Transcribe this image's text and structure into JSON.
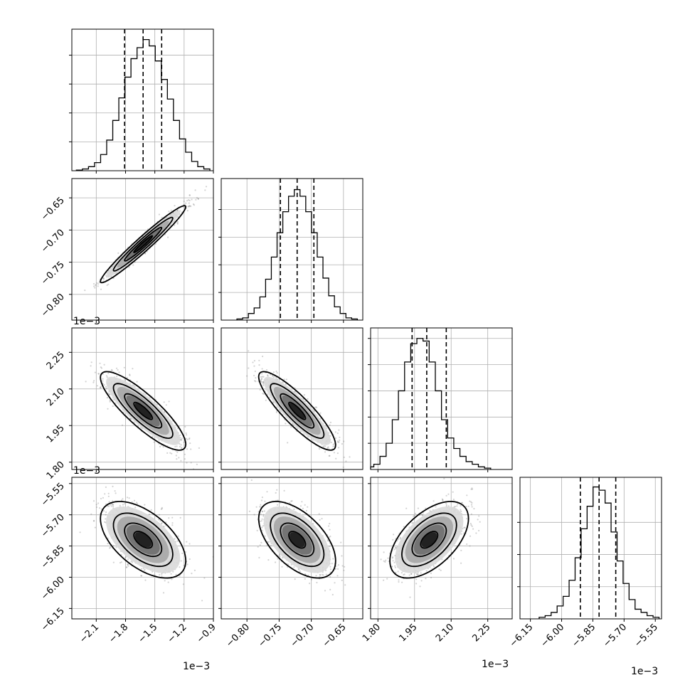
{
  "chart_data": {
    "type": "corner",
    "parameters": [
      {
        "range": [
          -2.35,
          -0.9
        ],
        "ticks": [
          -2.1,
          -1.8,
          -1.5,
          -1.2,
          -0.9
        ],
        "tick_labels": [
          "−2.1",
          "−1.8",
          "−1.5",
          "−1.2",
          "−0.9"
        ],
        "offset": "1e−3",
        "mean": -1.62,
        "sd": 0.19,
        "quantiles": [
          -1.81,
          -1.62,
          -1.43
        ],
        "hist_ylim": [
          0,
          0.00245
        ],
        "hist_yticks": [
          0.0005,
          0.001,
          0.0015,
          0.002
        ],
        "hist_values": [
          1e-05,
          3e-05,
          7e-05,
          0.00014,
          0.00028,
          0.00053,
          0.00087,
          0.00126,
          0.00162,
          0.00194,
          0.00213,
          0.00227,
          0.00216,
          0.0019,
          0.00158,
          0.00124,
          0.00087,
          0.00055,
          0.00032,
          0.00016,
          7e-05,
          3e-05
        ]
      },
      {
        "range": [
          -0.84,
          -0.62
        ],
        "ticks": [
          -0.8,
          -0.75,
          -0.7,
          -0.65
        ],
        "tick_labels": [
          "−0.80",
          "−0.75",
          "−0.70",
          "−0.65"
        ],
        "offset": "1e−3",
        "mean": -0.722,
        "sd": 0.026,
        "quantiles": [
          -0.748,
          -0.722,
          -0.696
        ],
        "hist_ylim": [
          0,
          0.0128
        ],
        "hist_yticks": [
          0.0025,
          0.005,
          0.0075,
          0.01
        ],
        "hist_values": [
          0.0001,
          0.0002,
          0.0006,
          0.0011,
          0.0021,
          0.0037,
          0.0057,
          0.0079,
          0.0098,
          0.0112,
          0.0118,
          0.0112,
          0.0098,
          0.0079,
          0.0057,
          0.0038,
          0.0022,
          0.0012,
          0.0006,
          0.0002,
          0.0001
        ]
      },
      {
        "range": [
          1.77,
          2.35
        ],
        "ticks": [
          1.8,
          1.95,
          2.1,
          2.25
        ],
        "tick_labels": [
          "1.80",
          "1.95",
          "2.10",
          "2.25"
        ],
        "offset": "1e−3",
        "mean": 2.01,
        "sd": 0.07,
        "quantiles": [
          1.94,
          2.0,
          2.08
        ],
        "hist_ylim": [
          0,
          0.0054
        ],
        "hist_yticks": [
          0.001,
          0.002,
          0.003,
          0.004,
          0.005
        ],
        "hist_values": [
          0.0001,
          0.0002,
          0.0005,
          0.001,
          0.0019,
          0.003,
          0.0041,
          0.0048,
          0.005,
          0.0049,
          0.0041,
          0.003,
          0.0019,
          0.0012,
          0.0008,
          0.0005,
          0.0003,
          0.0002,
          0.0001,
          5e-05
        ]
      },
      {
        "range": [
          -6.2,
          -5.52
        ],
        "ticks": [
          -6.15,
          -6.0,
          -5.85,
          -5.7,
          -5.55
        ],
        "tick_labels": [
          "−6.15",
          "−6.00",
          "−5.85",
          "−5.70",
          "−5.55"
        ],
        "offset": "1e−3",
        "mean": -5.82,
        "sd": 0.08,
        "quantiles": [
          -5.91,
          -5.82,
          -5.74
        ],
        "hist_ylim": [
          0,
          0.0044
        ],
        "hist_yticks": [
          0.001,
          0.002,
          0.003
        ],
        "hist_values": [
          5e-05,
          0.0001,
          0.0002,
          0.0004,
          0.0007,
          0.0012,
          0.0019,
          0.0028,
          0.0035,
          0.0041,
          0.004,
          0.0036,
          0.0027,
          0.0018,
          0.0011,
          0.0006,
          0.0003,
          0.0002,
          0.0001,
          5e-05
        ]
      }
    ],
    "pairs": [
      {
        "row": 1,
        "col": 0,
        "corr": 0.97
      },
      {
        "row": 2,
        "col": 0,
        "corr": -0.85
      },
      {
        "row": 2,
        "col": 1,
        "corr": -0.87
      },
      {
        "row": 3,
        "col": 0,
        "corr": -0.55
      },
      {
        "row": 3,
        "col": 1,
        "corr": -0.55
      },
      {
        "row": 3,
        "col": 2,
        "corr": 0.55
      }
    ],
    "grid": true,
    "colors": {
      "line": "#000000",
      "grid": "#b0b0b0",
      "points": "#808080"
    }
  }
}
